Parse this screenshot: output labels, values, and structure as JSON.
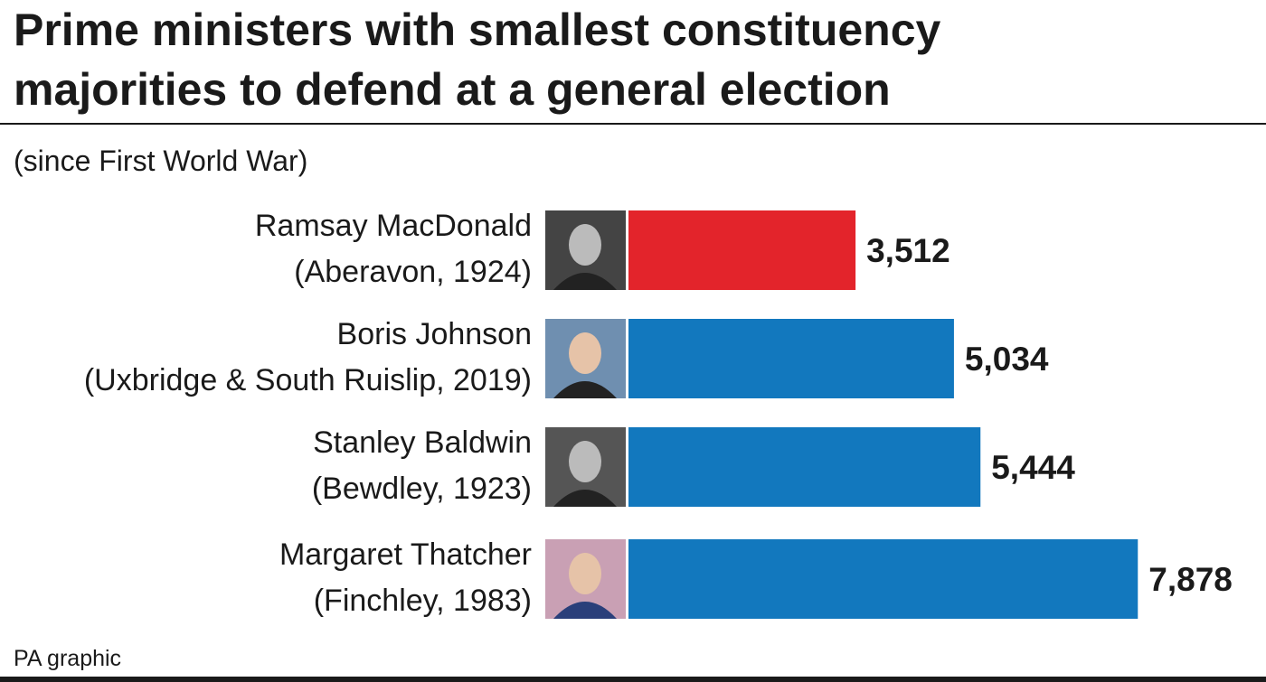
{
  "chart_data": {
    "type": "bar",
    "orientation": "horizontal",
    "title": [
      "Prime ministers with smallest constituency",
      "majorities to defend at a general election"
    ],
    "subtitle": "(since First World War)",
    "categories": [
      [
        "Ramsay MacDonald",
        "(Aberavon, 1924)"
      ],
      [
        "Boris Johnson",
        "(Uxbridge & South Ruislip, 2019)"
      ],
      [
        "Stanley Baldwin",
        "(Bewdley, 1923)"
      ],
      [
        "Margaret Thatcher",
        "(Finchley, 1983)"
      ]
    ],
    "values": [
      3512,
      5034,
      5444,
      7878
    ],
    "value_labels": [
      "3,512",
      "5,034",
      "5,444",
      "7,878"
    ],
    "colors": [
      "#e3242b",
      "#1278be",
      "#1278be",
      "#1278be"
    ],
    "xlim": [
      0,
      8000
    ],
    "source": "PA graphic"
  }
}
